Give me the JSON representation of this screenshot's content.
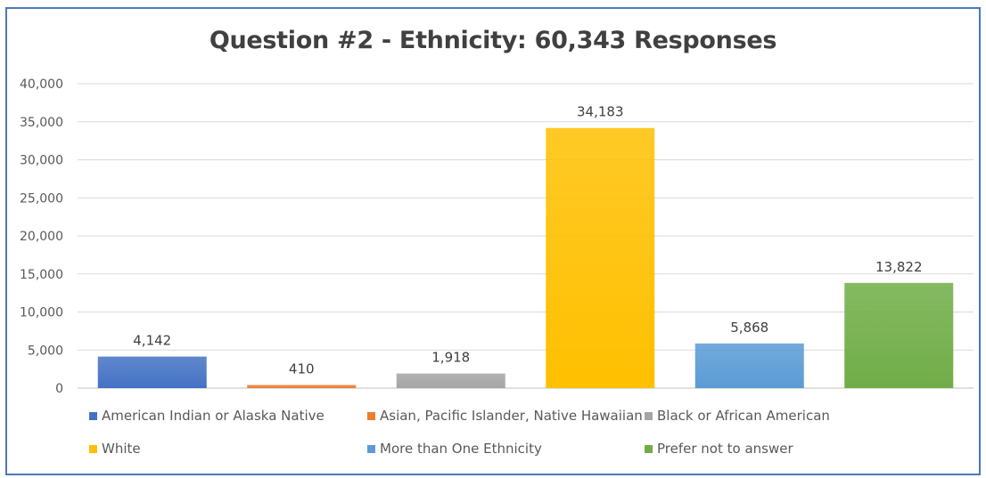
{
  "chart_data": {
    "type": "bar",
    "title": "Question #2 - Ethnicity: 60,343 Responses",
    "xlabel": "",
    "ylabel": "",
    "ylim": [
      0,
      40000
    ],
    "yticks": [
      0,
      5000,
      10000,
      15000,
      20000,
      25000,
      30000,
      35000,
      40000
    ],
    "ytick_labels": [
      "0",
      "5,000",
      "10,000",
      "15,000",
      "20,000",
      "25,000",
      "30,000",
      "35,000",
      "40,000"
    ],
    "grid": true,
    "legend_position": "bottom",
    "categories": [
      "American Indian or Alaska Native",
      "Asian, Pacific Islander, Native Hawaiian",
      "Black or African American",
      "White",
      "More than One Ethnicity",
      "Prefer not to answer"
    ],
    "values": [
      4142,
      410,
      1918,
      34183,
      5868,
      13822
    ],
    "data_labels": [
      "4,142",
      "410",
      "1,918",
      "34,183",
      "5,868",
      "13,822"
    ],
    "colors": [
      "#4472c4",
      "#ed7d31",
      "#a5a5a5",
      "#ffc000",
      "#5b9bd5",
      "#70ad47"
    ]
  }
}
